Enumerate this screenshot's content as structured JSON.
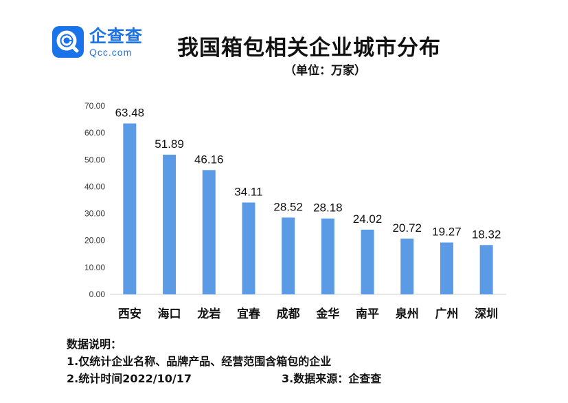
{
  "brand": {
    "name_cn": "企查查",
    "name_en": "Qcc.com",
    "color": "#1a73e8"
  },
  "header": {
    "title": "我国箱包相关企业城市分布",
    "subtitle": "（单位：万家）"
  },
  "chart_data": {
    "type": "bar",
    "categories": [
      "西安",
      "海口",
      "龙岩",
      "宜春",
      "成都",
      "金华",
      "南平",
      "泉州",
      "广州",
      "深圳"
    ],
    "values": [
      63.48,
      51.89,
      46.16,
      34.11,
      28.52,
      28.18,
      24.02,
      20.72,
      19.27,
      18.32
    ],
    "value_labels": [
      "63.48",
      "51.89",
      "46.16",
      "34.11",
      "28.52",
      "28.18",
      "24.02",
      "20.72",
      "19.27",
      "18.32"
    ],
    "yticks": [
      "0.00",
      "10.00",
      "20.00",
      "30.00",
      "40.00",
      "50.00",
      "60.00",
      "70.00"
    ],
    "ylim": [
      0,
      70
    ],
    "title": "我国箱包相关企业城市分布",
    "ylabel": "",
    "xlabel": "",
    "grid": false,
    "bar_color": "#5b9be6"
  },
  "notes": {
    "heading": "数据说明：",
    "line1": "1.仅统计企业名称、品牌产品、经营范围含箱包的企业",
    "line2": "2.统计时间2022/10/17",
    "line3": "3.数据来源：企查查"
  }
}
